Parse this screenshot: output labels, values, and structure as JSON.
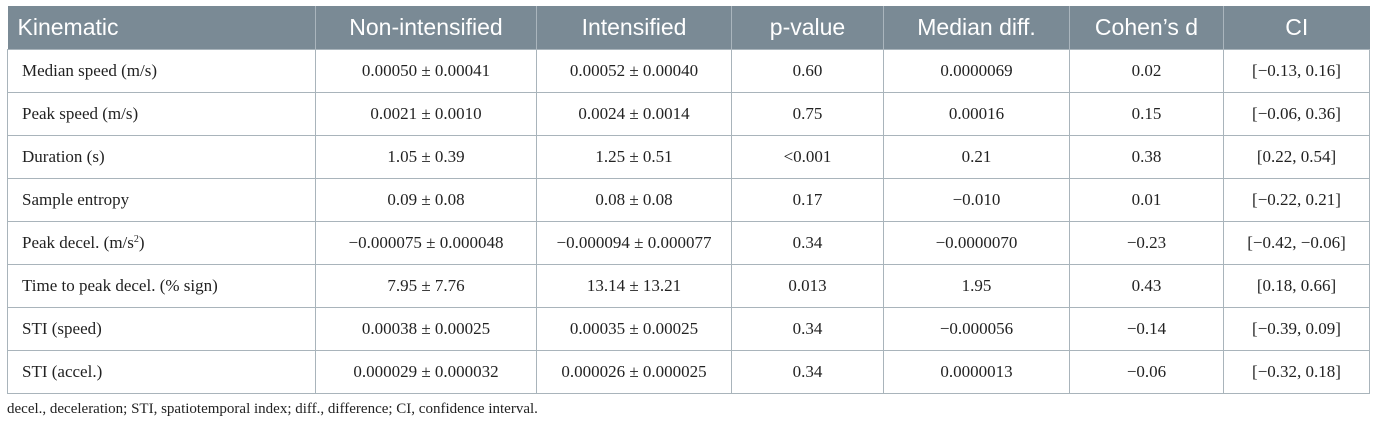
{
  "table": {
    "headers": [
      "Kinematic",
      "Non-intensified",
      "Intensified",
      "p-value",
      "Median diff.",
      "Cohen’s d",
      "CI"
    ],
    "rows": [
      {
        "label": "Median speed (m/s)",
        "label_sup": "",
        "non_intensified": "0.00050 ± 0.00041",
        "intensified": "0.00052 ± 0.00040",
        "p_value": "0.60",
        "median_diff": "0.0000069",
        "cohens_d": "0.02",
        "ci": "[−0.13, 0.16]"
      },
      {
        "label": "Peak speed (m/s)",
        "label_sup": "",
        "non_intensified": "0.0021 ± 0.0010",
        "intensified": "0.0024 ± 0.0014",
        "p_value": "0.75",
        "median_diff": "0.00016",
        "cohens_d": "0.15",
        "ci": "[−0.06, 0.36]"
      },
      {
        "label": "Duration (s)",
        "label_sup": "",
        "non_intensified": "1.05 ± 0.39",
        "intensified": "1.25 ± 0.51",
        "p_value": "<0.001",
        "median_diff": "0.21",
        "cohens_d": "0.38",
        "ci": "[0.22, 0.54]"
      },
      {
        "label": "Sample entropy",
        "label_sup": "",
        "non_intensified": "0.09 ± 0.08",
        "intensified": "0.08 ± 0.08",
        "p_value": "0.17",
        "median_diff": "−0.010",
        "cohens_d": "0.01",
        "ci": "[−0.22, 0.21]"
      },
      {
        "label": "Peak decel. (m/s",
        "label_sup": "2",
        "label_suffix": ")",
        "non_intensified": "−0.000075 ± 0.000048",
        "intensified": "−0.000094 ± 0.000077",
        "p_value": "0.34",
        "median_diff": "−0.0000070",
        "cohens_d": "−0.23",
        "ci": "[−0.42, −0.06]"
      },
      {
        "label": "Time to peak decel. (% sign)",
        "label_sup": "",
        "non_intensified": "7.95 ± 7.76",
        "intensified": "13.14 ± 13.21",
        "p_value": "0.013",
        "median_diff": "1.95",
        "cohens_d": "0.43",
        "ci": "[0.18, 0.66]"
      },
      {
        "label": "STI (speed)",
        "label_sup": "",
        "non_intensified": "0.00038 ± 0.00025",
        "intensified": "0.00035 ± 0.00025",
        "p_value": "0.34",
        "median_diff": "−0.000056",
        "cohens_d": "−0.14",
        "ci": "[−0.39, 0.09]"
      },
      {
        "label": "STI (accel.)",
        "label_sup": "",
        "non_intensified": "0.000029 ± 0.000032",
        "intensified": "0.000026 ± 0.000025",
        "p_value": "0.34",
        "median_diff": "0.0000013",
        "cohens_d": "−0.06",
        "ci": "[−0.32, 0.18]"
      }
    ]
  },
  "footnote": "decel., deceleration; STI, spatiotemporal index; diff., difference; CI, confidence interval.",
  "colors": {
    "header_bg": "#7a8a95",
    "border": "#a9b4bb"
  }
}
